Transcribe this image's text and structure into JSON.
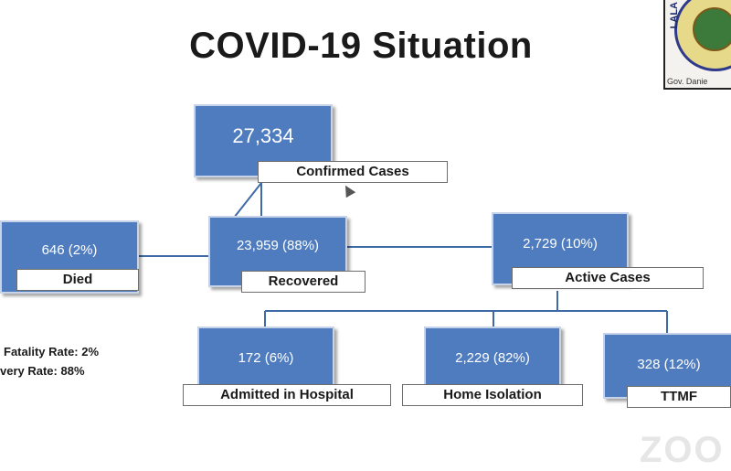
{
  "slide": {
    "title": "COVID-19 Situation",
    "logo_text": "LALA",
    "logo_caption": "Gov. Danie",
    "watermark": "ZOO"
  },
  "nodes": {
    "confirmed": {
      "value": "27,334",
      "label": "Confirmed Cases"
    },
    "died": {
      "value": "646 (2%)",
      "label": "Died"
    },
    "recovered": {
      "value": "23,959 (88%)",
      "label": "Recovered"
    },
    "active": {
      "value": "2,729 (10%)",
      "label": "Active Cases"
    },
    "hospital": {
      "value": "172 (6%)",
      "label": "Admitted in Hospital"
    },
    "home": {
      "value": "2,229 (82%)",
      "label": "Home Isolation"
    },
    "ttmf": {
      "value": "328 (12%)",
      "label": "TTMF"
    }
  },
  "stats": {
    "fatality": "Fatality Rate: 2%",
    "recovery": "very Rate: 88%"
  },
  "colors": {
    "node_fill": "#4f7cbf",
    "connector": "#3f6aa8"
  }
}
